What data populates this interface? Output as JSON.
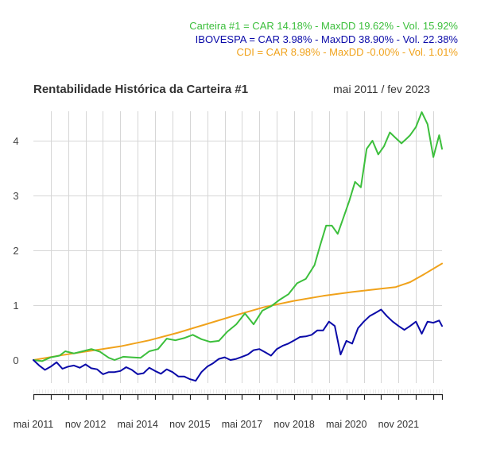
{
  "chart_data": {
    "type": "line",
    "title": "Rentabilidade Histórica da Carteira #1",
    "subtitle": "mai 2011 / fev 2023",
    "xlabel": "",
    "ylabel": "",
    "ylim": [
      -0.6,
      4.55
    ],
    "yticks": [
      0,
      1,
      2,
      3,
      4
    ],
    "x_start": "mai 2011",
    "x_end": "fev 2023",
    "x_months_total": 141,
    "xtick_labels": [
      "mai 2011",
      "nov 2012",
      "mai 2014",
      "nov 2015",
      "mai 2017",
      "nov 2018",
      "mai 2020",
      "nov 2021"
    ],
    "xtick_label_months": [
      0,
      18,
      36,
      54,
      72,
      90,
      108,
      126
    ],
    "grid": true,
    "legend": {
      "placement": "top-right",
      "entries": [
        {
          "text": "Carteira #1 = CAR 14.18% - MaxDD 19.62% - Vol. 15.92%",
          "color": "#3cbf3c"
        },
        {
          "text": "IBOVESPA = CAR 3.98% - MaxDD 38.90% - Vol. 22.38%",
          "color": "#0a0aa8"
        },
        {
          "text": "CDI = CAR 8.98% - MaxDD -0.00% - Vol. 1.01%",
          "color": "#f0a21b"
        }
      ]
    },
    "series": [
      {
        "name": "Carteira #1",
        "color": "#3cbf3c",
        "months": [
          0,
          3,
          6,
          9,
          11,
          14,
          17,
          20,
          23,
          26,
          28,
          31,
          34,
          37,
          40,
          43,
          46,
          49,
          52,
          55,
          58,
          61,
          64,
          67,
          70,
          73,
          76,
          79,
          82,
          85,
          88,
          91,
          94,
          97,
          99,
          101,
          103,
          105,
          107,
          109,
          111,
          113,
          115,
          117,
          119,
          121,
          123,
          125,
          127,
          129,
          130,
          132,
          134,
          136,
          138,
          140,
          141
        ],
        "values": [
          0.0,
          -0.02,
          0.05,
          0.08,
          0.16,
          0.12,
          0.16,
          0.2,
          0.15,
          0.04,
          0.0,
          0.06,
          0.05,
          0.04,
          0.16,
          0.2,
          0.39,
          0.36,
          0.4,
          0.46,
          0.38,
          0.33,
          0.35,
          0.52,
          0.65,
          0.85,
          0.65,
          0.9,
          0.98,
          1.1,
          1.2,
          1.4,
          1.48,
          1.73,
          2.1,
          2.45,
          2.45,
          2.3,
          2.6,
          2.9,
          3.25,
          3.15,
          3.85,
          4.0,
          3.75,
          3.9,
          4.15,
          4.05,
          3.95,
          4.05,
          4.1,
          4.25,
          4.52,
          4.3,
          3.7,
          4.1,
          3.85
        ]
      },
      {
        "name": "IBOVESPA",
        "color": "#0a0aa8",
        "months": [
          0,
          2,
          4,
          6,
          8,
          10,
          12,
          14,
          16,
          18,
          20,
          22,
          24,
          26,
          28,
          30,
          32,
          34,
          36,
          38,
          40,
          42,
          44,
          46,
          48,
          50,
          52,
          54,
          56,
          58,
          60,
          62,
          64,
          66,
          68,
          70,
          72,
          74,
          76,
          78,
          80,
          82,
          84,
          86,
          88,
          90,
          92,
          94,
          96,
          98,
          100,
          102,
          104,
          106,
          108,
          110,
          112,
          114,
          116,
          118,
          120,
          122,
          124,
          126,
          128,
          130,
          132,
          134,
          136,
          138,
          140,
          141
        ],
        "values": [
          0.0,
          -0.1,
          -0.18,
          -0.12,
          -0.04,
          -0.16,
          -0.12,
          -0.1,
          -0.14,
          -0.08,
          -0.15,
          -0.17,
          -0.26,
          -0.22,
          -0.22,
          -0.2,
          -0.13,
          -0.18,
          -0.26,
          -0.24,
          -0.14,
          -0.2,
          -0.25,
          -0.17,
          -0.22,
          -0.3,
          -0.3,
          -0.35,
          -0.38,
          -0.22,
          -0.12,
          -0.06,
          0.02,
          0.05,
          0.0,
          0.02,
          0.06,
          0.1,
          0.18,
          0.2,
          0.14,
          0.08,
          0.2,
          0.26,
          0.3,
          0.36,
          0.42,
          0.43,
          0.46,
          0.54,
          0.54,
          0.7,
          0.62,
          0.1,
          0.35,
          0.3,
          0.58,
          0.7,
          0.8,
          0.86,
          0.92,
          0.8,
          0.7,
          0.62,
          0.55,
          0.62,
          0.7,
          0.48,
          0.7,
          0.68,
          0.72,
          0.62
        ]
      },
      {
        "name": "CDI",
        "color": "#f0a21b",
        "months": [
          0,
          10,
          20,
          30,
          40,
          50,
          60,
          70,
          80,
          90,
          100,
          110,
          120,
          125,
          130,
          135,
          141
        ],
        "values": [
          0.0,
          0.09,
          0.17,
          0.25,
          0.36,
          0.5,
          0.66,
          0.82,
          0.97,
          1.08,
          1.17,
          1.24,
          1.3,
          1.33,
          1.42,
          1.57,
          1.76
        ]
      }
    ]
  }
}
